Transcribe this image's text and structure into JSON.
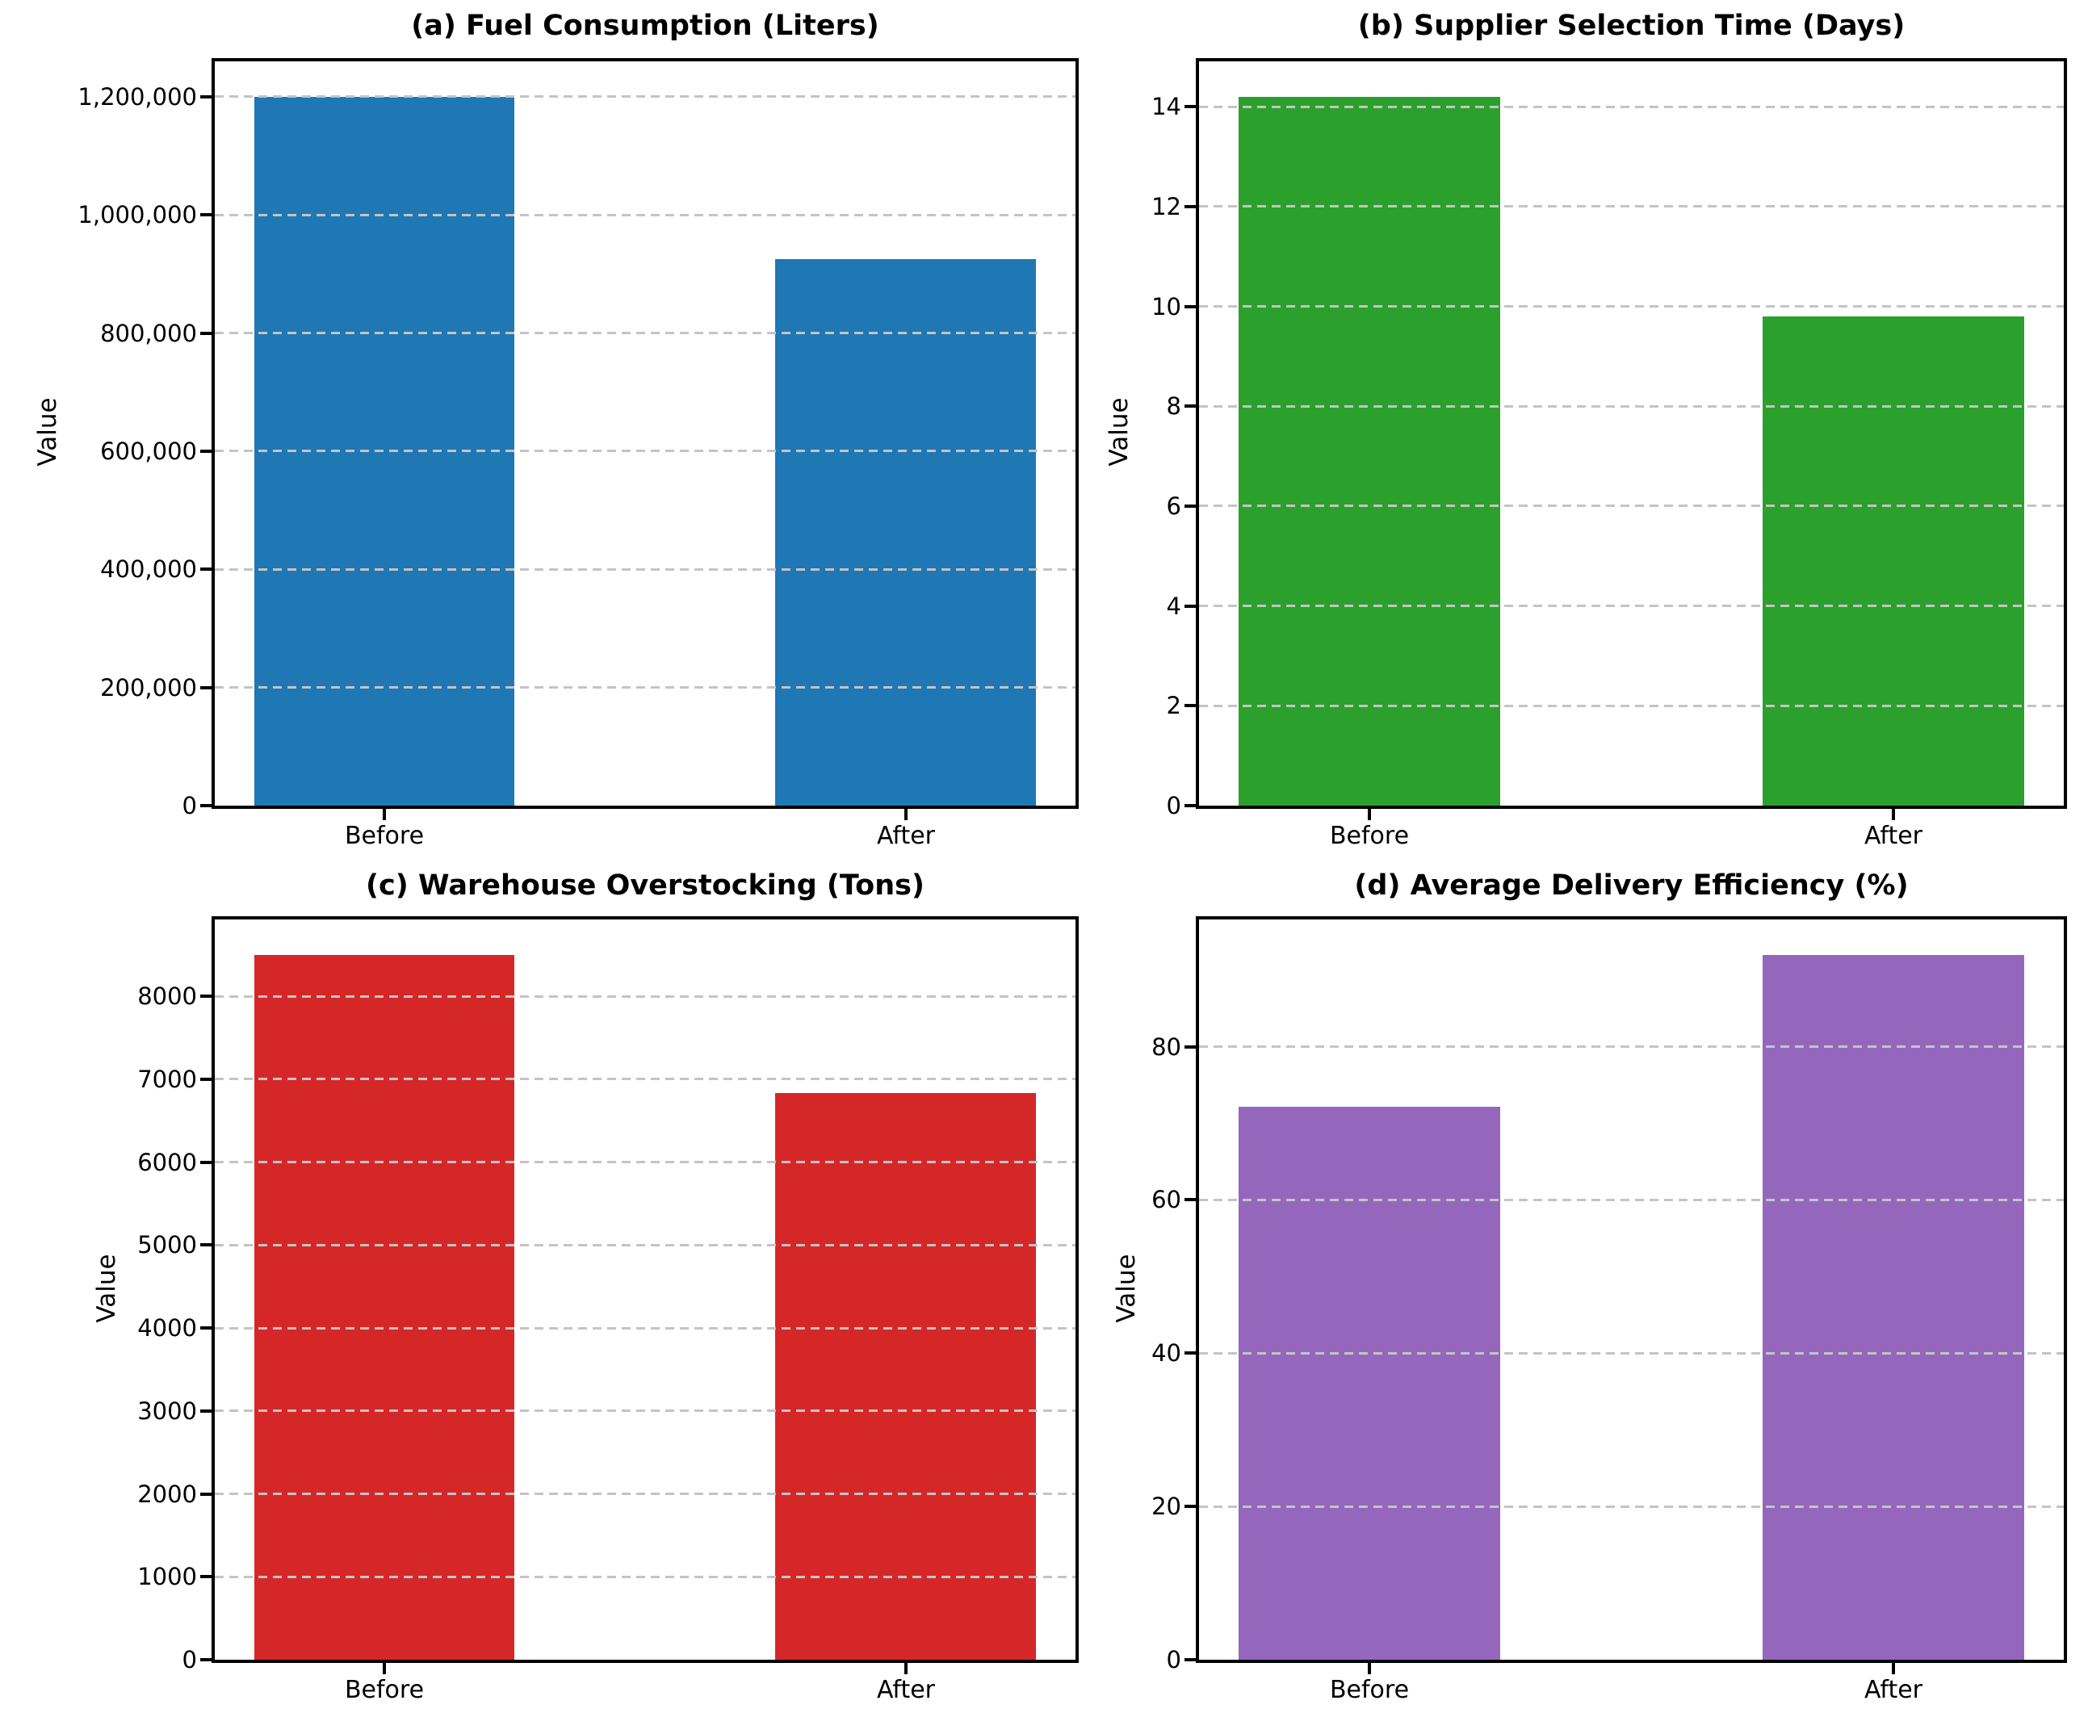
{
  "figure": {
    "background_color": "#ffffff",
    "grid_color": "#c4c4c4",
    "axis_color": "#000000"
  },
  "chart_data": [
    {
      "type": "bar",
      "panel": "a",
      "title": "(a) Fuel Consumption (Liters)",
      "xlabel": "",
      "ylabel": "Value",
      "categories": [
        "Before",
        "After"
      ],
      "values": [
        1200000,
        925000
      ],
      "bar_color": "#1f77b4",
      "ylim": [
        0,
        1260000
      ],
      "yticks": [
        0,
        200000,
        400000,
        600000,
        800000,
        1000000,
        1200000
      ],
      "ytick_labels": [
        "0",
        "200,000",
        "400,000",
        "600,000",
        "800,000",
        "1,000,000",
        "1,200,000"
      ],
      "grid": true,
      "grid_style": "dashed",
      "legend": "none"
    },
    {
      "type": "bar",
      "panel": "b",
      "title": "(b) Supplier Selection Time (Days)",
      "xlabel": "",
      "ylabel": "Value",
      "categories": [
        "Before",
        "After"
      ],
      "values": [
        14.2,
        9.8
      ],
      "bar_color": "#2ca02c",
      "ylim": [
        0,
        14.91
      ],
      "yticks": [
        0,
        2,
        4,
        6,
        8,
        10,
        12,
        14
      ],
      "ytick_labels": [
        "0",
        "2",
        "4",
        "6",
        "8",
        "10",
        "12",
        "14"
      ],
      "grid": true,
      "grid_style": "dashed",
      "legend": "none"
    },
    {
      "type": "bar",
      "panel": "c",
      "title": "(c) Warehouse Overstocking (Tons)",
      "xlabel": "",
      "ylabel": "Value",
      "categories": [
        "Before",
        "After"
      ],
      "values": [
        8500,
        6830
      ],
      "bar_color": "#d62728",
      "ylim": [
        0,
        8925
      ],
      "yticks": [
        0,
        1000,
        2000,
        3000,
        4000,
        5000,
        6000,
        7000,
        8000
      ],
      "ytick_labels": [
        "0",
        "1000",
        "2000",
        "3000",
        "4000",
        "5000",
        "6000",
        "7000",
        "8000"
      ],
      "grid": true,
      "grid_style": "dashed",
      "legend": "none"
    },
    {
      "type": "bar",
      "panel": "d",
      "title": "(d) Average Delivery Efficiency (%)",
      "xlabel": "",
      "ylabel": "Value",
      "categories": [
        "Before",
        "After"
      ],
      "values": [
        72.2,
        92.0
      ],
      "bar_color": "#9467bd",
      "ylim": [
        0,
        96.6
      ],
      "yticks": [
        0,
        20,
        40,
        60,
        80
      ],
      "ytick_labels": [
        "0",
        "20",
        "40",
        "60",
        "80"
      ],
      "grid": true,
      "grid_style": "dashed",
      "legend": "none"
    }
  ]
}
